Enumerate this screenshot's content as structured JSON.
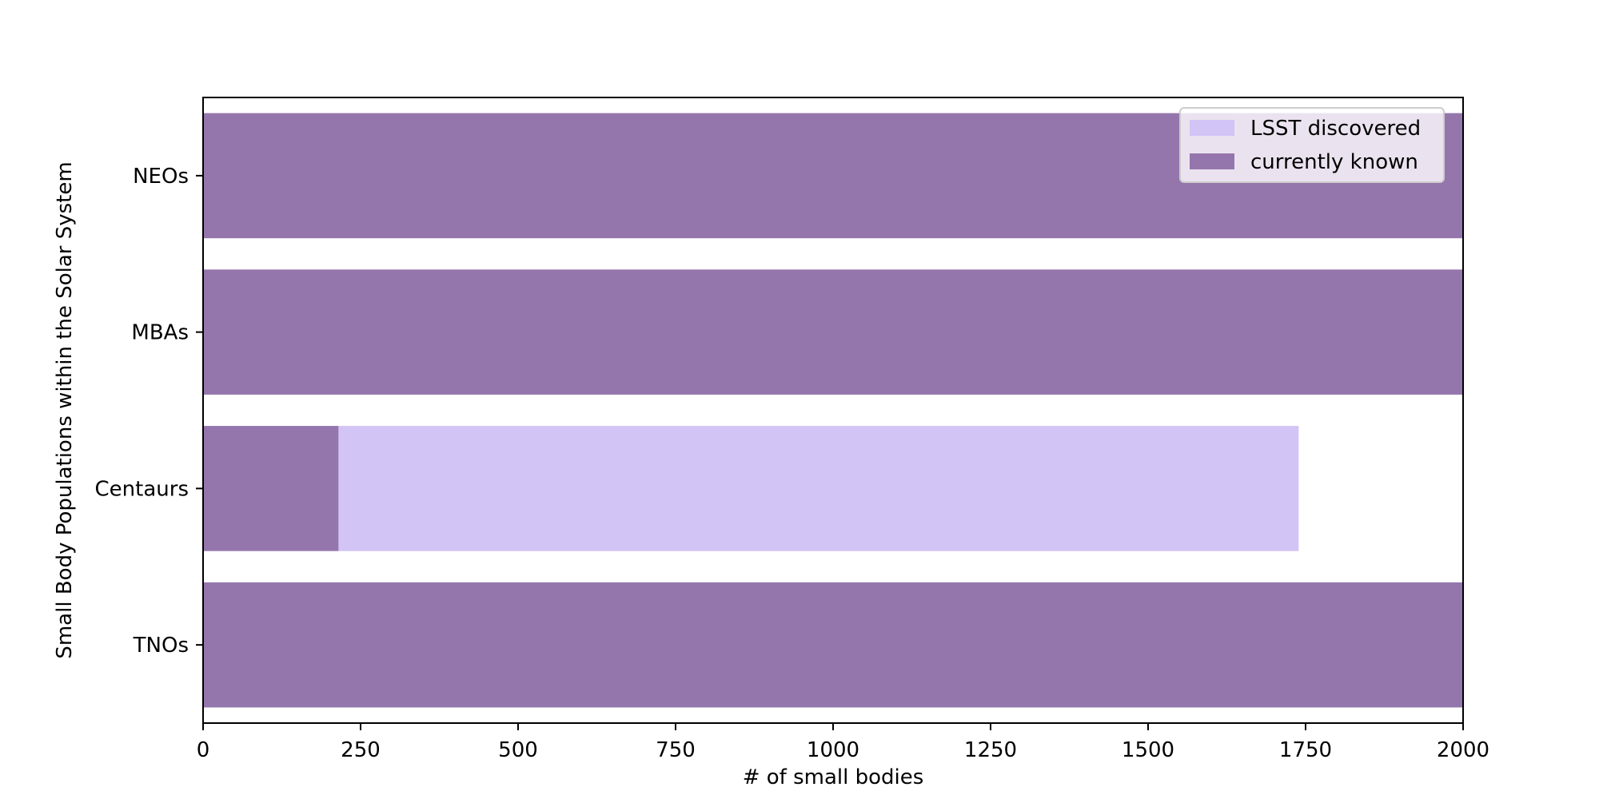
{
  "chart_data": {
    "type": "bar",
    "orientation": "horizontal",
    "stacked": true,
    "categories": [
      "NEOs",
      "MBAs",
      "Centaurs",
      "TNOs"
    ],
    "series": [
      {
        "name": "LSST discovered",
        "values": [
          0,
          0,
          1524,
          0
        ],
        "color": "#d2c4f5"
      },
      {
        "name": "currently known",
        "values": [
          2000,
          2000,
          215,
          2000
        ],
        "color": "#9476ad"
      }
    ],
    "xlabel": "# of small bodies",
    "ylabel": "Small Body Populations within the Solar System",
    "xlim": [
      0,
      2000
    ],
    "xticks": [
      0,
      250,
      500,
      750,
      1000,
      1250,
      1500,
      1750,
      2000
    ],
    "grid": false,
    "legend_position": "top-right"
  }
}
